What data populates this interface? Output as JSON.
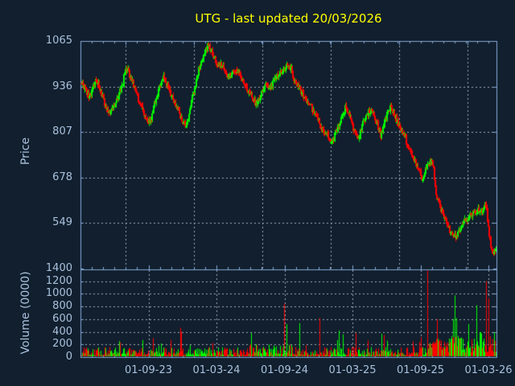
{
  "window": {
    "symbol": "UTG",
    "last_updated": "20/03/2026"
  },
  "chart_data": {
    "type": "candlestick_with_volume",
    "title": "UTG - last updated 20/03/2026",
    "x_axis": {
      "tick_labels": [
        "01-09-23",
        "01-03-24",
        "01-09-24",
        "01-03-25",
        "01-09-25",
        "01-03-26"
      ]
    },
    "price_axis": {
      "label": "Price",
      "tick_labels": [
        "1065",
        "936",
        "807",
        "678",
        "549"
      ],
      "tick_values": [
        1065,
        936,
        807,
        678,
        549
      ],
      "range": [
        416,
        1065
      ],
      "grid": true
    },
    "volume_axis": {
      "label": "Volume (0000)",
      "tick_labels": [
        "1400",
        "1200",
        "1000",
        "800",
        "600",
        "400",
        "200",
        "0"
      ],
      "tick_values": [
        1400,
        1200,
        1000,
        800,
        600,
        400,
        200,
        0
      ],
      "range": [
        0,
        1400
      ],
      "grid": true
    },
    "colors": {
      "background": "#111f2e",
      "frame": "#87abd9",
      "grid": "#a5aeb8",
      "text": "#a9c1dd",
      "title": "#ffff00",
      "up": "#00ff00",
      "down": "#ff0000"
    },
    "candles_count": 560,
    "seed": 20260320,
    "price_waypoints": [
      [
        0,
        950
      ],
      [
        0.01,
        925
      ],
      [
        0.019,
        905
      ],
      [
        0.027,
        930
      ],
      [
        0.035,
        960
      ],
      [
        0.044,
        935
      ],
      [
        0.052,
        900
      ],
      [
        0.06,
        880
      ],
      [
        0.068,
        862
      ],
      [
        0.075,
        875
      ],
      [
        0.083,
        890
      ],
      [
        0.091,
        915
      ],
      [
        0.099,
        945
      ],
      [
        0.106,
        975
      ],
      [
        0.112,
        985
      ],
      [
        0.12,
        955
      ],
      [
        0.128,
        930
      ],
      [
        0.135,
        905
      ],
      [
        0.143,
        885
      ],
      [
        0.151,
        862
      ],
      [
        0.159,
        845
      ],
      [
        0.166,
        835
      ],
      [
        0.174,
        870
      ],
      [
        0.182,
        910
      ],
      [
        0.19,
        945
      ],
      [
        0.197,
        965
      ],
      [
        0.205,
        945
      ],
      [
        0.213,
        925
      ],
      [
        0.22,
        905
      ],
      [
        0.228,
        880
      ],
      [
        0.236,
        865
      ],
      [
        0.244,
        840
      ],
      [
        0.251,
        825
      ],
      [
        0.259,
        855
      ],
      [
        0.267,
        900
      ],
      [
        0.275,
        940
      ],
      [
        0.282,
        975
      ],
      [
        0.29,
        1005
      ],
      [
        0.298,
        1035
      ],
      [
        0.306,
        1058
      ],
      [
        0.313,
        1040
      ],
      [
        0.321,
        1015
      ],
      [
        0.329,
        992
      ],
      [
        0.337,
        1000
      ],
      [
        0.344,
        988
      ],
      [
        0.352,
        970
      ],
      [
        0.36,
        968
      ],
      [
        0.368,
        978
      ],
      [
        0.375,
        986
      ],
      [
        0.383,
        966
      ],
      [
        0.391,
        950
      ],
      [
        0.398,
        935
      ],
      [
        0.406,
        915
      ],
      [
        0.414,
        898
      ],
      [
        0.422,
        885
      ],
      [
        0.429,
        902
      ],
      [
        0.437,
        925
      ],
      [
        0.445,
        940
      ],
      [
        0.453,
        930
      ],
      [
        0.46,
        945
      ],
      [
        0.468,
        958
      ],
      [
        0.476,
        968
      ],
      [
        0.484,
        978
      ],
      [
        0.491,
        988
      ],
      [
        0.499,
        998
      ],
      [
        0.507,
        985
      ],
      [
        0.514,
        955
      ],
      [
        0.522,
        935
      ],
      [
        0.53,
        920
      ],
      [
        0.538,
        905
      ],
      [
        0.545,
        895
      ],
      [
        0.553,
        882
      ],
      [
        0.561,
        865
      ],
      [
        0.569,
        845
      ],
      [
        0.576,
        825
      ],
      [
        0.584,
        812
      ],
      [
        0.592,
        800
      ],
      [
        0.6,
        785
      ],
      [
        0.607,
        778
      ],
      [
        0.615,
        812
      ],
      [
        0.623,
        832
      ],
      [
        0.631,
        855
      ],
      [
        0.638,
        880
      ],
      [
        0.646,
        858
      ],
      [
        0.654,
        828
      ],
      [
        0.662,
        795
      ],
      [
        0.669,
        788
      ],
      [
        0.677,
        820
      ],
      [
        0.685,
        845
      ],
      [
        0.692,
        860
      ],
      [
        0.7,
        872
      ],
      [
        0.708,
        848
      ],
      [
        0.716,
        820
      ],
      [
        0.723,
        795
      ],
      [
        0.731,
        838
      ],
      [
        0.739,
        862
      ],
      [
        0.747,
        878
      ],
      [
        0.754,
        858
      ],
      [
        0.762,
        838
      ],
      [
        0.77,
        815
      ],
      [
        0.777,
        800
      ],
      [
        0.785,
        778
      ],
      [
        0.793,
        750
      ],
      [
        0.801,
        735
      ],
      [
        0.808,
        712
      ],
      [
        0.816,
        698
      ],
      [
        0.824,
        668
      ],
      [
        0.832,
        700
      ],
      [
        0.839,
        715
      ],
      [
        0.847,
        720
      ],
      [
        0.851,
        700
      ],
      [
        0.855,
        650
      ],
      [
        0.859,
        615
      ],
      [
        0.867,
        590
      ],
      [
        0.874,
        570
      ],
      [
        0.882,
        545
      ],
      [
        0.89,
        525
      ],
      [
        0.897,
        505
      ],
      [
        0.905,
        512
      ],
      [
        0.913,
        530
      ],
      [
        0.921,
        550
      ],
      [
        0.928,
        558
      ],
      [
        0.936,
        568
      ],
      [
        0.944,
        575
      ],
      [
        0.952,
        578
      ],
      [
        0.959,
        585
      ],
      [
        0.967,
        582
      ],
      [
        0.971,
        592
      ],
      [
        0.975,
        600
      ],
      [
        0.979,
        575
      ],
      [
        0.983,
        520
      ],
      [
        0.987,
        495
      ],
      [
        0.99,
        478
      ],
      [
        0.994,
        462
      ],
      [
        1,
        470
      ]
    ],
    "volume_spikes": [
      [
        0.093,
        230,
        "down"
      ],
      [
        0.174,
        300,
        "down"
      ],
      [
        0.242,
        400,
        "down"
      ],
      [
        0.41,
        380,
        "up"
      ],
      [
        0.496,
        520,
        "up"
      ],
      [
        0.62,
        420,
        "up"
      ],
      [
        0.73,
        350,
        "down"
      ],
      [
        0.836,
        1370,
        "down"
      ],
      [
        0.859,
        600,
        "down"
      ],
      [
        0.897,
        600,
        "up"
      ],
      [
        0.953,
        820,
        "up"
      ],
      [
        0.977,
        1200,
        "down"
      ],
      [
        0.982,
        930,
        "down"
      ]
    ]
  }
}
